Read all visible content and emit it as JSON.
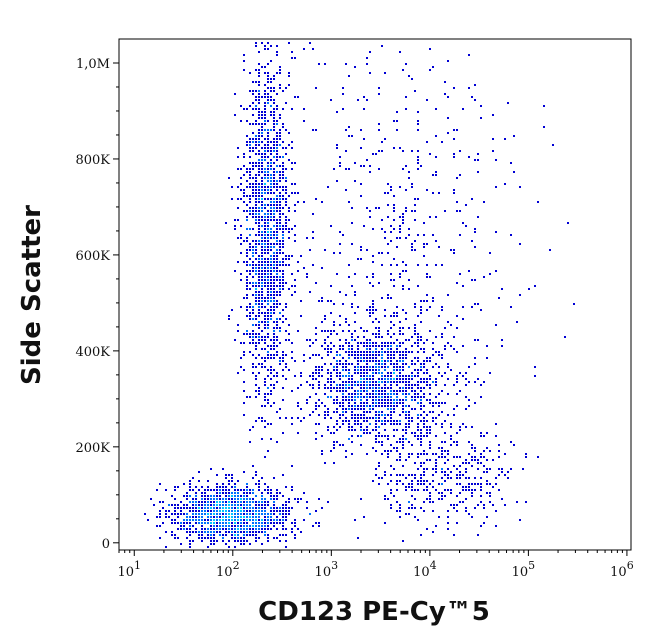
{
  "chart_data": {
    "type": "scatter",
    "style": "flow-cytometry pseudocolor density dot plot",
    "xlabel": "CD123 PE-Cy™",
    "xlabel_suffix": "5",
    "ylabel": "Side Scatter",
    "x_scale": "log",
    "xlim": [
      7,
      1100000
    ],
    "ylim": [
      -15000,
      1050000
    ],
    "x_ticks": [
      {
        "value": 10,
        "base": "10",
        "exp": "1"
      },
      {
        "value": 100,
        "base": "10",
        "exp": "2"
      },
      {
        "value": 1000,
        "base": "10",
        "exp": "3"
      },
      {
        "value": 10000,
        "base": "10",
        "exp": "4"
      },
      {
        "value": 100000,
        "base": "10",
        "exp": "5"
      },
      {
        "value": 1000000,
        "base": "10",
        "exp": "6"
      }
    ],
    "y_ticks": [
      {
        "value": 0,
        "label": "0"
      },
      {
        "value": 200000,
        "label": "200K"
      },
      {
        "value": 400000,
        "label": "400K"
      },
      {
        "value": 600000,
        "label": "600K"
      },
      {
        "value": 800000,
        "label": "800K"
      },
      {
        "value": 1000000,
        "label": "1,0M"
      }
    ],
    "grid": false,
    "density_colors": [
      "#0000d4",
      "#0072ff",
      "#00c8ff",
      "#00ffc8",
      "#46ff5a",
      "#d2ff00",
      "#ffb400",
      "#ff4000",
      "#c80000"
    ],
    "populations": [
      {
        "x_center": 100,
        "y_center": 60000,
        "x_spread_decades": 0.3,
        "y_spread": 30000,
        "events": 1600
      },
      {
        "x_center": 220,
        "y_center": 650000,
        "x_spread_decades": 0.12,
        "y_spread": 180000,
        "events": 1700
      },
      {
        "x_center": 3000,
        "y_center": 330000,
        "x_spread_decades": 0.35,
        "y_spread": 60000,
        "events": 1500
      },
      {
        "x_center": 15000,
        "y_center": 130000,
        "x_spread_decades": 0.35,
        "y_spread": 50000,
        "events": 350
      },
      {
        "x_center": 5000,
        "y_center": 600000,
        "x_spread_decades": 0.6,
        "y_spread": 250000,
        "events": 600
      }
    ]
  }
}
